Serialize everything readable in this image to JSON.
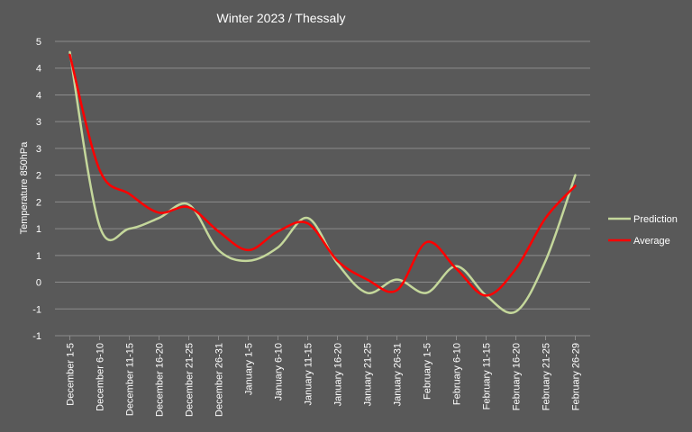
{
  "chart_data": {
    "type": "line",
    "title": "Winter 2023 /  Thessaly",
    "xlabel": "",
    "ylabel": "Temperature  850hPa",
    "categories": [
      "December 1-5",
      "December 6-10",
      "December 11-15",
      "December 16-20",
      "December 21-25",
      "December 26-31",
      "January 1-5",
      "January 6-10",
      "January 11-15",
      "January 16-20",
      "January 21-25",
      "January 26-31",
      "February 1-5",
      "February 6-10",
      "February 11-15",
      "February 16-20",
      "February 21-25",
      "February 26-29"
    ],
    "y_tick_labels": [
      "-1",
      "-1",
      "0",
      "1",
      "1",
      "2",
      "2",
      "3",
      "3",
      "4",
      "4",
      "5"
    ],
    "ylim": [
      -1,
      4.5
    ],
    "grid": true,
    "legend_position": "right",
    "background_color": "#595959",
    "series": [
      {
        "name": "Prediction",
        "color": "#c4d79b",
        "values": [
          4.3,
          1.05,
          1.0,
          1.2,
          1.45,
          0.6,
          0.4,
          0.65,
          1.2,
          0.35,
          -0.2,
          0.05,
          -0.2,
          0.3,
          -0.25,
          -0.55,
          0.4,
          2.0
        ]
      },
      {
        "name": "Average",
        "color": "#ff0000",
        "values": [
          4.25,
          2.1,
          1.65,
          1.3,
          1.4,
          0.95,
          0.6,
          0.95,
          1.1,
          0.4,
          0.05,
          -0.15,
          0.75,
          0.25,
          -0.25,
          0.25,
          1.2,
          1.8
        ]
      }
    ]
  }
}
